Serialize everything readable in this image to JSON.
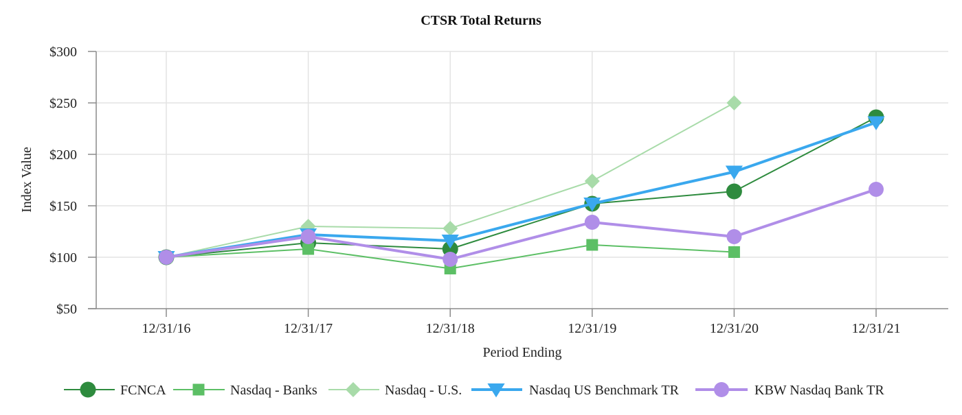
{
  "chart_data": {
    "type": "line",
    "title": "CTSR Total Returns",
    "xlabel": "Period Ending",
    "ylabel": "Index Value",
    "categories": [
      "12/31/16",
      "12/31/17",
      "12/31/18",
      "12/31/19",
      "12/31/20",
      "12/31/21"
    ],
    "ylim": [
      50,
      300
    ],
    "yticks": [
      50,
      100,
      150,
      200,
      250,
      300
    ],
    "ytick_labels": [
      "$50",
      "$100",
      "$150",
      "$200",
      "$250",
      "$300"
    ],
    "grid": true,
    "legend_position": "bottom",
    "series": [
      {
        "name": "FCNCA",
        "marker": "circle",
        "color": "#2e8b3e",
        "line_style": "thin",
        "values": [
          100,
          114,
          108,
          152,
          164,
          236
        ]
      },
      {
        "name": "Nasdaq - Banks",
        "marker": "square",
        "color": "#5cbf65",
        "line_style": "thin",
        "values": [
          100,
          108,
          89,
          112,
          105,
          null
        ]
      },
      {
        "name": "Nasdaq - U.S.",
        "marker": "diamond",
        "color": "#a8dba9",
        "line_style": "thin",
        "values": [
          100,
          130,
          128,
          174,
          250,
          null
        ]
      },
      {
        "name": "Nasdaq US Benchmark TR",
        "marker": "triangle-down",
        "color": "#3aa8ee",
        "line_style": "thick",
        "values": [
          100,
          122,
          116,
          152,
          183,
          231
        ]
      },
      {
        "name": "KBW Nasdaq Bank TR",
        "marker": "circle",
        "color": "#b08ee8",
        "line_style": "thick",
        "values": [
          100,
          120,
          98,
          134,
          120,
          166
        ]
      }
    ]
  }
}
